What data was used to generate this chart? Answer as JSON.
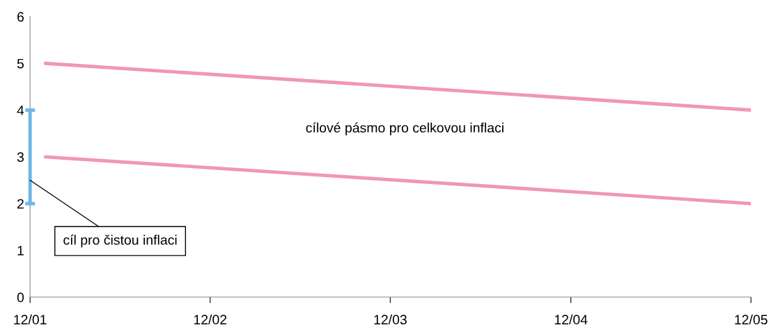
{
  "chart_data": {
    "type": "line",
    "series": [
      {
        "x": [
          "2002-01",
          "2005-12"
        ],
        "values": [
          5,
          4
        ],
        "color": "#f297b0"
      },
      {
        "x": [
          "2002-01",
          "2005-12"
        ],
        "values": [
          3,
          2
        ],
        "color": "#f297b0"
      },
      {
        "x": [
          "2001-12",
          "2001-12"
        ],
        "values": [
          2,
          4
        ],
        "color": "#6cb8e6"
      }
    ],
    "xlim": [
      "2001-12",
      "2005-12"
    ],
    "xticks": [
      {
        "value": "2001-12",
        "label": "12/01"
      },
      {
        "value": "2002-12",
        "label": "12/02"
      },
      {
        "value": "2003-12",
        "label": "12/03"
      },
      {
        "value": "2004-12",
        "label": "12/04"
      },
      {
        "value": "2005-12",
        "label": "12/05"
      }
    ],
    "ylim": [
      0,
      6
    ],
    "yticks": [
      0,
      1,
      2,
      3,
      4,
      5,
      6
    ],
    "annotations": [
      "cílové pásmo pro celkovou inflaci",
      {
        "text": "cíl pro čistou inflaci",
        "x": "2001-12",
        "y": 2.5
      }
    ],
    "grid": false,
    "legend": false
  }
}
